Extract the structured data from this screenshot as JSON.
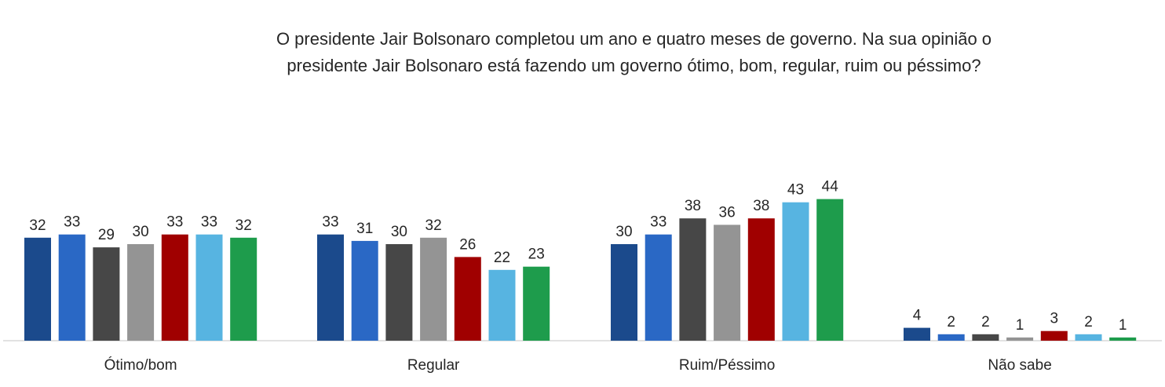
{
  "title_lines": [
    "O presidente Jair Bolsonaro completou um ano e quatro meses de governo. Na sua opinião o",
    "presidente Jair Bolsonaro está fazendo um governo ótimo, bom, regular, ruim ou péssimo?"
  ],
  "chart_data": {
    "type": "bar",
    "title": "O presidente Jair Bolsonaro completou um ano e quatro meses de governo. Na sua opinião o presidente Jair Bolsonaro está fazendo um governo ótimo, bom, regular, ruim ou péssimo?",
    "categories": [
      "Ótimo/bom",
      "Regular",
      "Ruim/Péssimo",
      "Não sabe"
    ],
    "series": [
      {
        "color": "#1b4a8c",
        "values": [
          32,
          33,
          30,
          4
        ]
      },
      {
        "color": "#2a68c5",
        "values": [
          33,
          31,
          33,
          2
        ]
      },
      {
        "color": "#474747",
        "values": [
          29,
          30,
          38,
          2
        ]
      },
      {
        "color": "#949494",
        "values": [
          30,
          32,
          36,
          1
        ]
      },
      {
        "color": "#a00000",
        "values": [
          33,
          26,
          38,
          3
        ]
      },
      {
        "color": "#57b4e1",
        "values": [
          33,
          22,
          43,
          2
        ]
      },
      {
        "color": "#1e9c4c",
        "values": [
          32,
          23,
          44,
          1
        ]
      }
    ],
    "xlabel": "",
    "ylabel": "",
    "ylim": [
      0,
      44
    ],
    "data_labels": true,
    "grid": false,
    "legend": "none"
  }
}
